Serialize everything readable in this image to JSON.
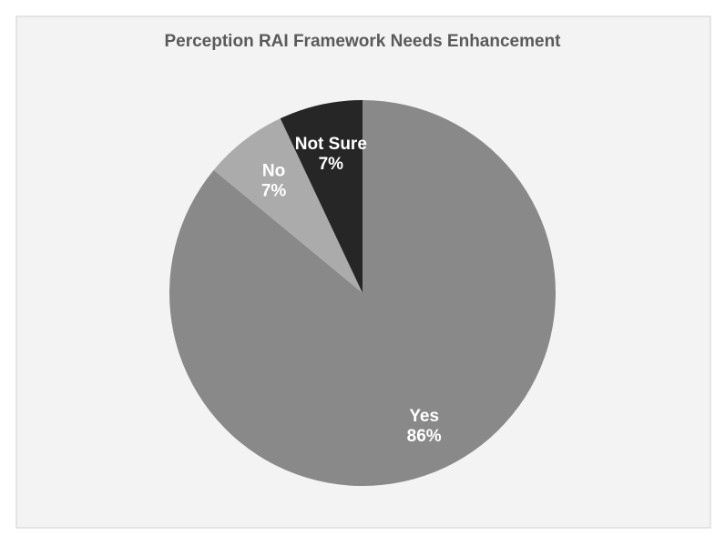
{
  "chart_data": {
    "type": "pie",
    "title": "Perception RAI Framework Needs Enhancement",
    "categories": [
      "Yes",
      "No",
      "Not Sure"
    ],
    "values": [
      86,
      7,
      7
    ],
    "value_labels": [
      "86%",
      "7%",
      "7%"
    ],
    "colors": [
      "#898989",
      "#ababab",
      "#262626"
    ]
  }
}
